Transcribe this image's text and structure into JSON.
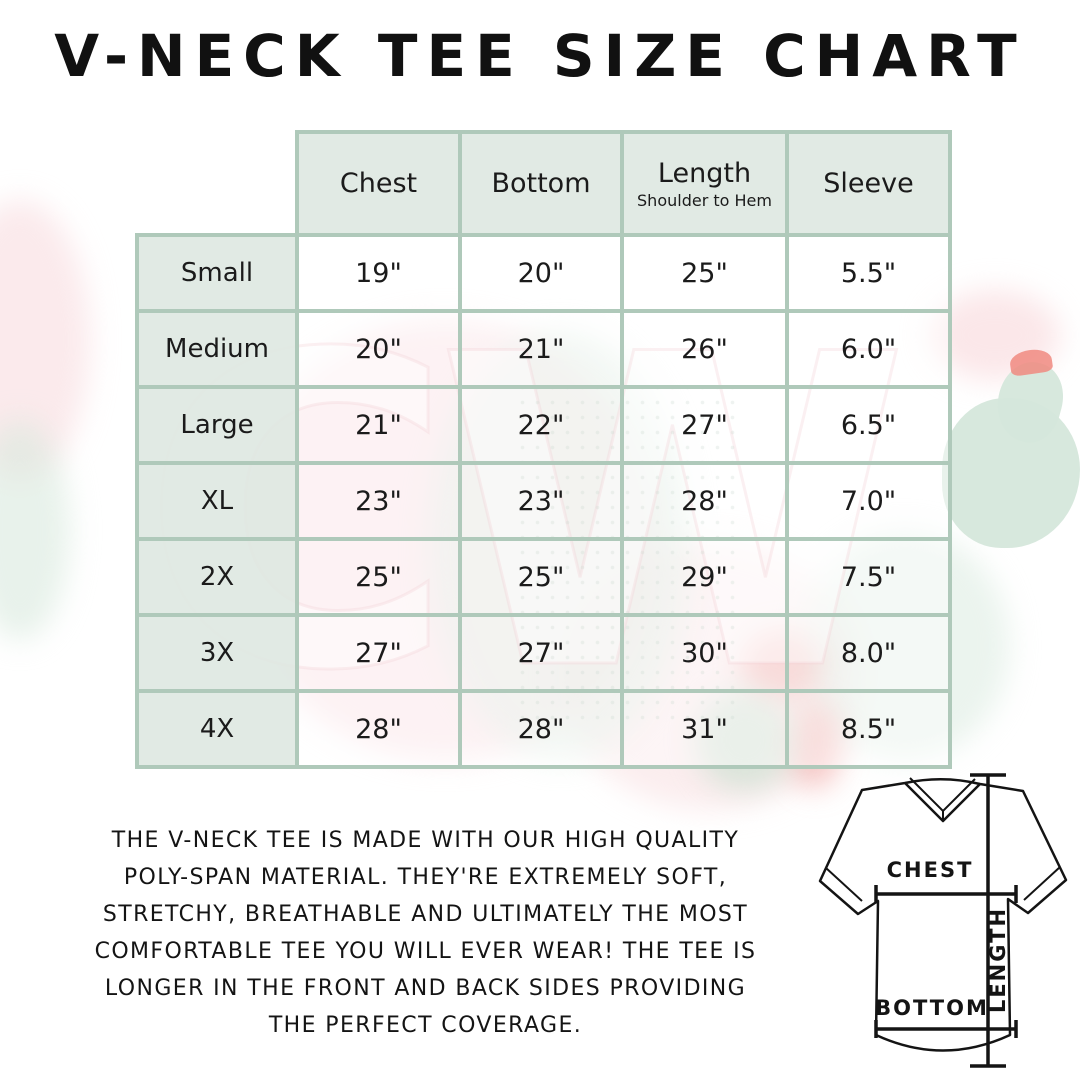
{
  "title": "V-NECK TEE SIZE CHART",
  "chart_data": {
    "type": "table",
    "title": "V-NECK TEE SIZE CHART",
    "columns": [
      {
        "label": "Chest",
        "sub": ""
      },
      {
        "label": "Bottom",
        "sub": ""
      },
      {
        "label": "Length",
        "sub": "Shoulder to Hem"
      },
      {
        "label": "Sleeve",
        "sub": ""
      }
    ],
    "rows": [
      {
        "size": "Small",
        "chest": "19\"",
        "bottom": "20\"",
        "length": "25\"",
        "sleeve": "5.5\""
      },
      {
        "size": "Medium",
        "chest": "20\"",
        "bottom": "21\"",
        "length": "26\"",
        "sleeve": "6.0\""
      },
      {
        "size": "Large",
        "chest": "21\"",
        "bottom": "22\"",
        "length": "27\"",
        "sleeve": "6.5\""
      },
      {
        "size": "XL",
        "chest": "23\"",
        "bottom": "23\"",
        "length": "28\"",
        "sleeve": "7.0\""
      },
      {
        "size": "2X",
        "chest": "25\"",
        "bottom": "25\"",
        "length": "29\"",
        "sleeve": "7.5\""
      },
      {
        "size": "3X",
        "chest": "27\"",
        "bottom": "27\"",
        "length": "30\"",
        "sleeve": "8.0\""
      },
      {
        "size": "4X",
        "chest": "28\"",
        "bottom": "28\"",
        "length": "31\"",
        "sleeve": "8.5\""
      }
    ]
  },
  "description": {
    "text": "THE V-NECK TEE IS MADE WITH OUR HIGH QUALITY\nPOLY-SPAN MATERIAL. THEY'RE EXTREMELY SOFT,\nSTRETCHY, BREATHABLE AND ULTIMATELY THE MOST\nCOMFORTABLE TEE YOU WILL EVER WEAR! THE TEE IS\nLONGER IN THE FRONT AND BACK SIDES PROVIDING\nTHE PERFECT COVERAGE."
  },
  "diagram": {
    "chest_label": "CHEST",
    "length_label": "LENGTH",
    "bottom_label": "BOTTOM"
  },
  "watermark": {
    "letters": "CW"
  },
  "colors": {
    "table_border": "#afc9ba",
    "header_cell_bg": "#dfe9e2",
    "data_cell_bg": "#fdf7f7",
    "text": "#1b1b1b",
    "watermark_pink": "#f6d3d8",
    "watermark_green": "#d5e7db",
    "flower_coral": "#f08a80"
  }
}
